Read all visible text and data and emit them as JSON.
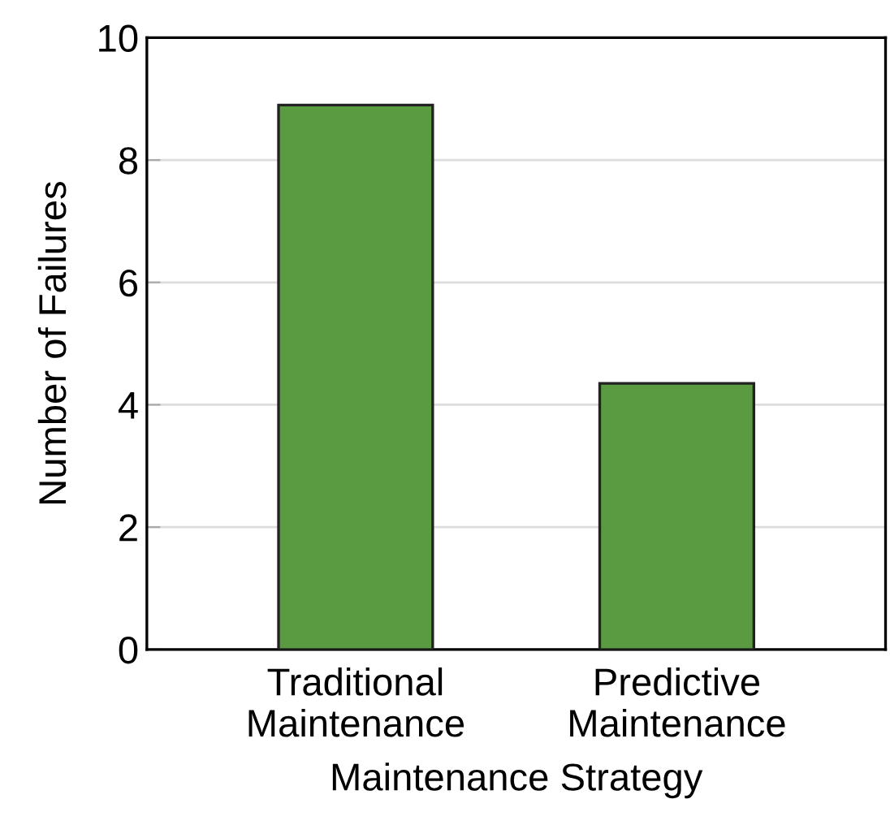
{
  "chart_data": {
    "type": "bar",
    "xlabel": "Maintenance Strategy",
    "ylabel": "Number of Failures",
    "categories": [
      "Traditional\nMaintenance",
      "Predictive\nMaintenance"
    ],
    "values": [
      8.9,
      4.35
    ],
    "color": "#5a9a40",
    "ylim": [
      0,
      10
    ],
    "yticks": [
      0,
      2,
      4,
      6,
      8,
      10
    ],
    "grid": "y"
  }
}
